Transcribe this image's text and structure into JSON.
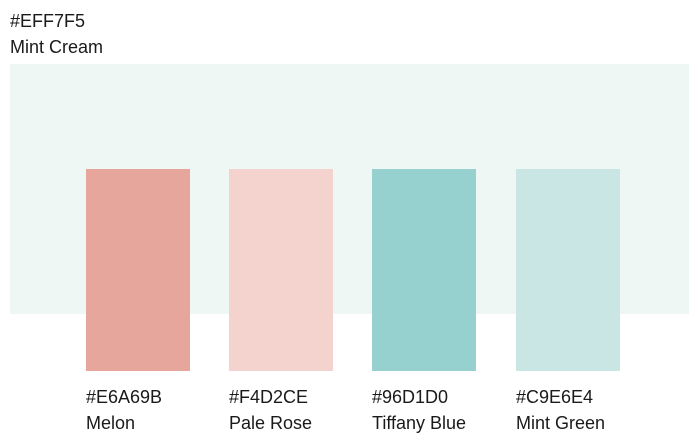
{
  "background": {
    "hex": "#EFF7F5",
    "name": "Mint Cream",
    "color": "#EFF7F5"
  },
  "swatches": [
    {
      "hex": "#E6A69B",
      "name": "Melon",
      "color": "#E6A69B"
    },
    {
      "hex": "#F4D2CE",
      "name": "Pale Rose",
      "color": "#F4D2CE"
    },
    {
      "hex": "#96D1D0",
      "name": "Tiffany Blue",
      "color": "#96D1D0"
    },
    {
      "hex": "#C9E6E4",
      "name": "Mint Green",
      "color": "#C9E6E4"
    }
  ]
}
